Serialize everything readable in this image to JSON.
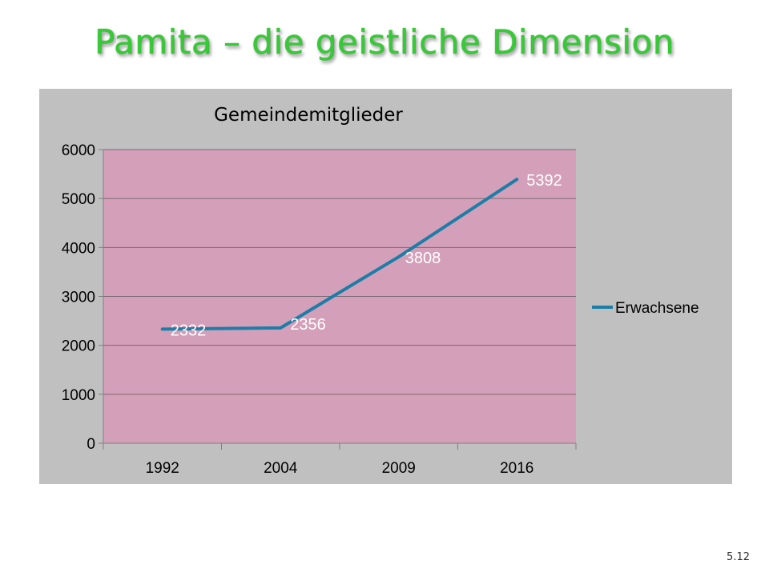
{
  "slide": {
    "title": "Pamita – die geistliche Dimension",
    "page_number": "5.12"
  },
  "colors": {
    "title": "#33cc33",
    "chart_background": "#c0c0c0",
    "plot_background": "#d49fb9",
    "line": "#1b7ea8",
    "gridline": "#7a6a72"
  },
  "chart_data": {
    "type": "line",
    "title": "Gemeindemitglieder",
    "categories": [
      "1992",
      "2004",
      "2009",
      "2016"
    ],
    "series": [
      {
        "name": "Erwachsene",
        "values": [
          2332,
          2356,
          3808,
          5392
        ]
      }
    ],
    "data_labels": [
      "2332",
      "2356",
      "3808",
      "5392"
    ],
    "y_ticks": [
      "0",
      "1000",
      "2000",
      "3000",
      "4000",
      "5000",
      "6000"
    ],
    "ylim": [
      0,
      6000
    ],
    "grid": true,
    "legend": "right"
  }
}
